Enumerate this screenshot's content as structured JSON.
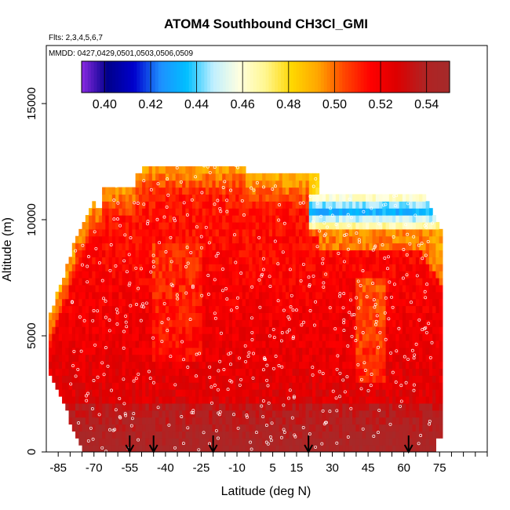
{
  "chart_data": {
    "type": "heatmap",
    "title": "ATOM4 Southbound CH3Cl_GMI",
    "subtitle_flights": "Flts: 2,3,4,5,6,7",
    "subtitle_dates": "MMDD: 0427,0429,0501,0503,0506,0509",
    "xlabel": "Latitude (deg N)",
    "ylabel": "Altitude (m)",
    "xlim": [
      -90,
      95
    ],
    "ylim": [
      0,
      17500
    ],
    "x_ticks": [
      -85,
      -70,
      -55,
      -40,
      -25,
      -10,
      5,
      15,
      30,
      45,
      60,
      75
    ],
    "y_ticks": [
      0,
      5000,
      10000,
      15000
    ],
    "colorbar": {
      "min": 0.39,
      "max": 0.55,
      "ticks": [
        "0.40",
        "0.42",
        "0.44",
        "0.46",
        "0.48",
        "0.50",
        "0.52",
        "0.54"
      ],
      "tick_values": [
        0.4,
        0.42,
        0.44,
        0.46,
        0.48,
        0.5,
        0.52,
        0.54
      ],
      "colors": [
        "#8a2be2",
        "#00008b",
        "#0000cd",
        "#1e90ff",
        "#00bfff",
        "#bfefff",
        "#ffffe0",
        "#fff68f",
        "#ffd700",
        "#ffa500",
        "#ff4500",
        "#ff0000",
        "#dd0000",
        "#b22222",
        "#a52a2a"
      ]
    },
    "profile_markers_lat": [
      -55,
      -45,
      -20,
      20,
      62
    ],
    "field_summary": {
      "surface_value": 0.545,
      "mid_troposphere_value": 0.53,
      "upper_tropical_value": 0.515,
      "upper_southern_band_value": 0.49,
      "northern_upper_band_value": 0.43
    },
    "grid": false
  }
}
